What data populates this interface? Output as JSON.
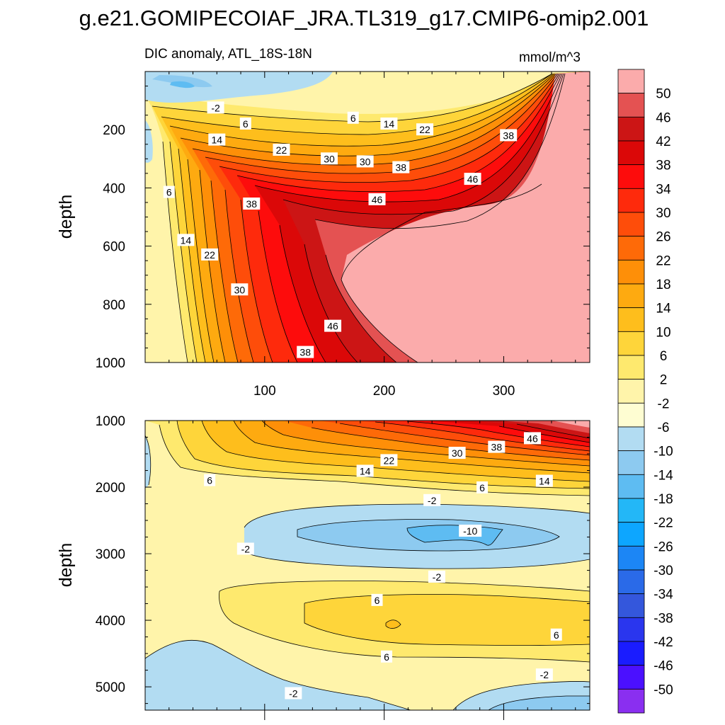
{
  "chart_data": {
    "type": "contour",
    "title": "g.e21.GOMIPECOIAF_JRA.TL319_g17.CMIP6-omip2.001",
    "subtitle_left": "DIC anomaly, ATL_18S-18N",
    "subtitle_right": "mmol/m^3",
    "x_axis": {
      "range": [
        0,
        372
      ],
      "ticks": [
        100,
        200,
        300
      ],
      "tick_labels": [
        "100",
        "200",
        "300"
      ]
    },
    "panels": [
      {
        "name": "upper",
        "ylabel": "depth",
        "ylim": [
          0,
          1000
        ],
        "y_reversed": true,
        "y_ticks": [
          200,
          400,
          600,
          800,
          1000
        ],
        "y_tick_labels": [
          "200",
          "400",
          "600",
          "800",
          "1000"
        ],
        "contour_labels": [
          {
            "text": "-2",
            "x": 59,
            "y": 125
          },
          {
            "text": "6",
            "x": 84,
            "y": 180
          },
          {
            "text": "6",
            "x": 174,
            "y": 160
          },
          {
            "text": "14",
            "x": 60,
            "y": 235
          },
          {
            "text": "14",
            "x": 204,
            "y": 180
          },
          {
            "text": "22",
            "x": 114,
            "y": 270
          },
          {
            "text": "22",
            "x": 234,
            "y": 200
          },
          {
            "text": "30",
            "x": 154,
            "y": 300
          },
          {
            "text": "30",
            "x": 184,
            "y": 310
          },
          {
            "text": "38",
            "x": 214,
            "y": 330
          },
          {
            "text": "38",
            "x": 304,
            "y": 220
          },
          {
            "text": "46",
            "x": 274,
            "y": 370
          },
          {
            "text": "46",
            "x": 194,
            "y": 440
          },
          {
            "text": "6",
            "x": 20,
            "y": 415
          },
          {
            "text": "14",
            "x": 34,
            "y": 580
          },
          {
            "text": "22",
            "x": 54,
            "y": 630
          },
          {
            "text": "30",
            "x": 79,
            "y": 750
          },
          {
            "text": "38",
            "x": 89,
            "y": 455
          },
          {
            "text": "46",
            "x": 157,
            "y": 875
          },
          {
            "text": "38",
            "x": 134,
            "y": 965
          }
        ]
      },
      {
        "name": "lower",
        "ylabel": "depth",
        "ylim": [
          1000,
          5350
        ],
        "y_reversed": true,
        "y_ticks": [
          1000,
          2000,
          3000,
          4000,
          5000
        ],
        "y_tick_labels": [
          "1000",
          "2000",
          "3000",
          "4000",
          "5000"
        ],
        "contour_labels": [
          {
            "text": "46",
            "x": 324,
            "y": 1270
          },
          {
            "text": "38",
            "x": 294,
            "y": 1400
          },
          {
            "text": "30",
            "x": 261,
            "y": 1490
          },
          {
            "text": "22",
            "x": 204,
            "y": 1600
          },
          {
            "text": "14",
            "x": 184,
            "y": 1760
          },
          {
            "text": "14",
            "x": 334,
            "y": 1910
          },
          {
            "text": "6",
            "x": 54,
            "y": 1900
          },
          {
            "text": "6",
            "x": 282,
            "y": 2010
          },
          {
            "text": "-2",
            "x": 240,
            "y": 2200
          },
          {
            "text": "-10",
            "x": 272,
            "y": 2660
          },
          {
            "text": "-2",
            "x": 84,
            "y": 2930
          },
          {
            "text": "-2",
            "x": 244,
            "y": 3350
          },
          {
            "text": "6",
            "x": 194,
            "y": 3700
          },
          {
            "text": "6",
            "x": 344,
            "y": 4220
          },
          {
            "text": "6",
            "x": 202,
            "y": 4550
          },
          {
            "text": "-2",
            "x": 334,
            "y": 4820
          },
          {
            "text": "-2",
            "x": 124,
            "y": 5100
          }
        ]
      }
    ],
    "colorbar": {
      "labels": [
        "50",
        "46",
        "42",
        "38",
        "34",
        "30",
        "26",
        "22",
        "18",
        "14",
        "10",
        "6",
        "2",
        "-2",
        "-6",
        "-10",
        "-14",
        "-18",
        "-22",
        "-26",
        "-30",
        "-34",
        "-38",
        "-42",
        "-46",
        "-50"
      ],
      "colors": [
        "#fbabab",
        "#e45252",
        "#cc1515",
        "#db0808",
        "#fd0c0c",
        "#fe2a0c",
        "#fe4d0a",
        "#fe6a08",
        "#fe8f08",
        "#feaa10",
        "#febe1c",
        "#fed53a",
        "#fee96e",
        "#fff4aa",
        "#fefdd2",
        "#b2dcf2",
        "#8dcaf0",
        "#5ebcf2",
        "#23b7f7",
        "#0da6ff",
        "#1c86f5",
        "#2a6ae8",
        "#3457dc",
        "#2a36ee",
        "#1a1cff",
        "#4b10ff",
        "#8a2ff0"
      ]
    }
  }
}
